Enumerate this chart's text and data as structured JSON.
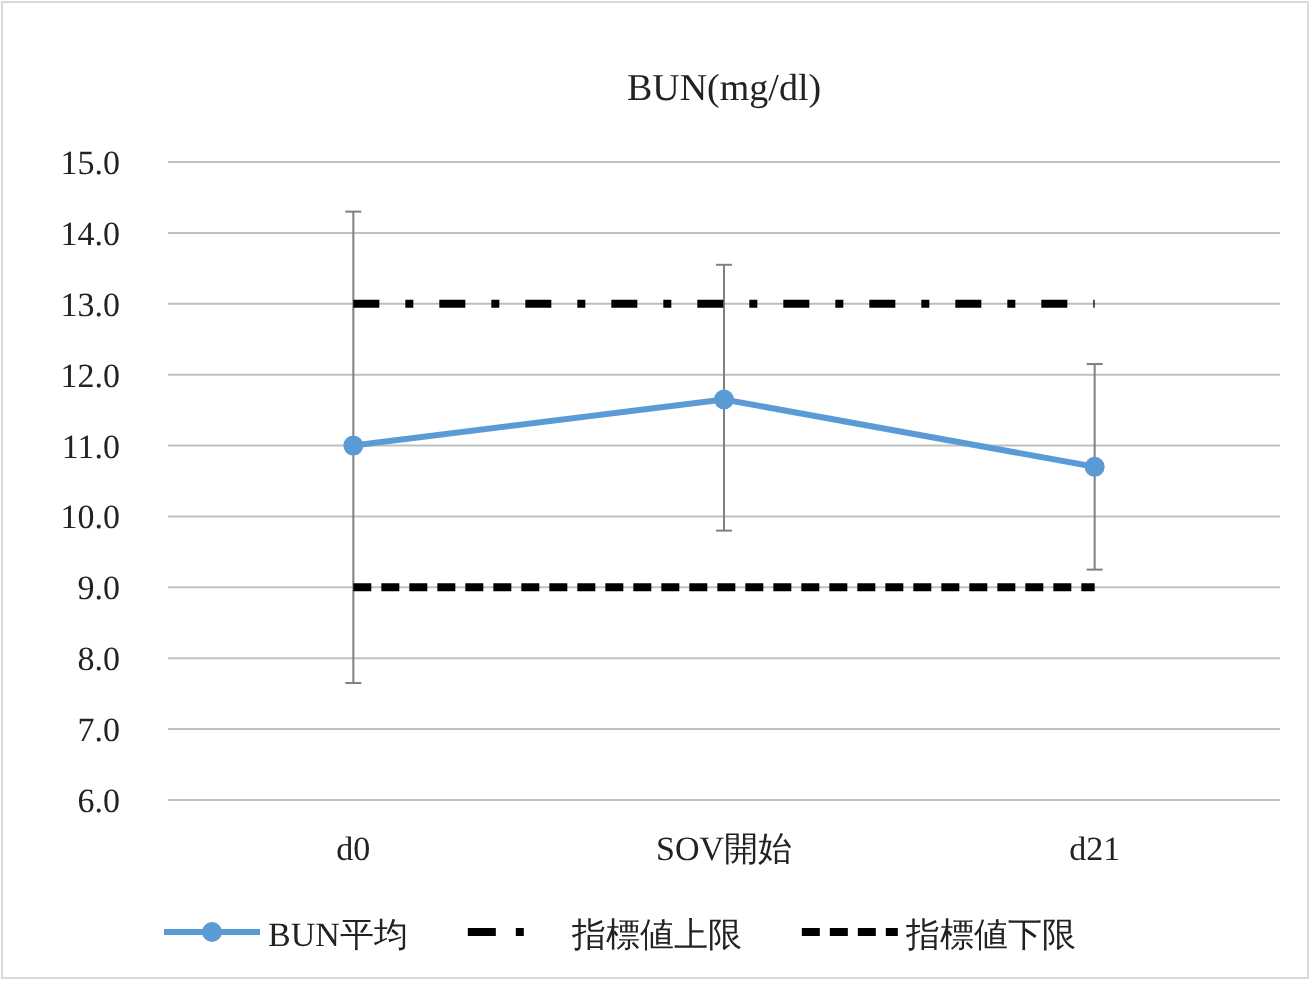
{
  "chart_data": {
    "type": "line",
    "title": "BUN(mg/dl)",
    "categories": [
      "d0",
      "SOV開始",
      "d21"
    ],
    "series": [
      {
        "name": "BUN平均",
        "color": "#5b9bd5",
        "values": [
          11.0,
          11.65,
          10.7
        ],
        "errors": [
          [
            7.65,
            14.3
          ],
          [
            9.8,
            13.55
          ],
          [
            9.25,
            12.15
          ]
        ],
        "marker": "circle",
        "line_style": "solid"
      },
      {
        "name": "指標値上限",
        "color": "#000000",
        "values": [
          13,
          13,
          13
        ],
        "marker": "none",
        "line_style": "dashdot"
      },
      {
        "name": "指標値下限",
        "color": "#000000",
        "values": [
          9,
          9,
          9
        ],
        "marker": "none",
        "line_style": "dashed"
      }
    ],
    "ylim": [
      6,
      15
    ],
    "yticks": [
      {
        "value": 6,
        "label": "6.0"
      },
      {
        "value": 7,
        "label": "7.0"
      },
      {
        "value": 8,
        "label": "8.0"
      },
      {
        "value": 9,
        "label": "9.0"
      },
      {
        "value": 10,
        "label": "10.0"
      },
      {
        "value": 11,
        "label": "11.0"
      },
      {
        "value": 12,
        "label": "12.0"
      },
      {
        "value": 13,
        "label": "13.0"
      },
      {
        "value": 14,
        "label": "14.0"
      },
      {
        "value": 15,
        "label": "15.0"
      }
    ],
    "grid": "y",
    "legend": "bottom"
  }
}
